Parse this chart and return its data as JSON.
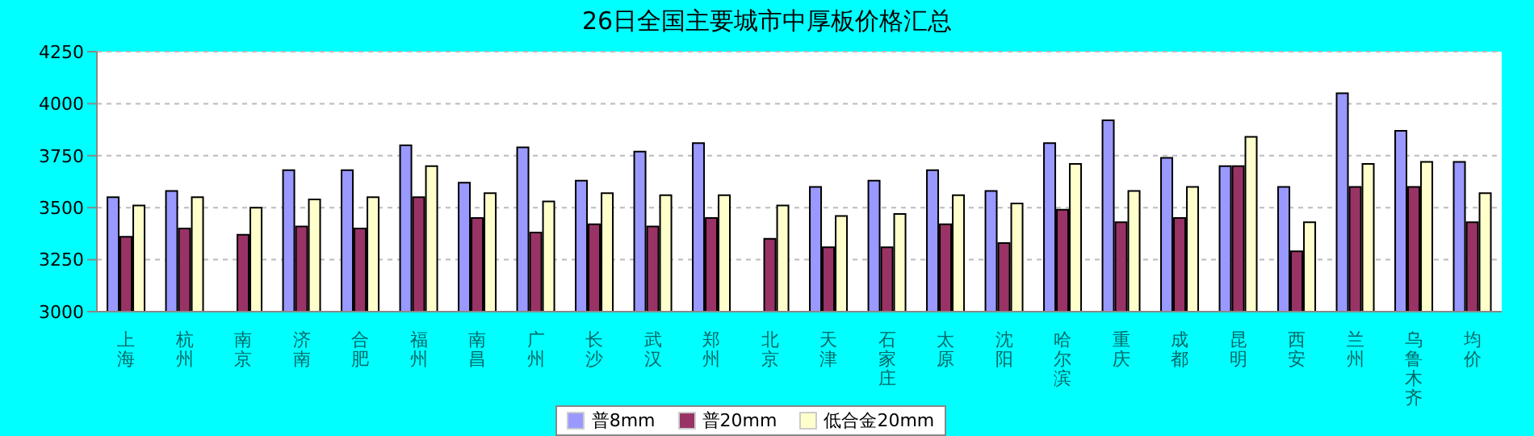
{
  "chart_data": {
    "type": "bar",
    "title": "26日全国主要城市中厚板价格汇总",
    "categories": [
      "上海",
      "杭州",
      "南京",
      "济南",
      "合肥",
      "福州",
      "南昌",
      "广州",
      "长沙",
      "武汉",
      "郑州",
      "北京",
      "天津",
      "石家庄",
      "太原",
      "沈阳",
      "哈尔滨",
      "重庆",
      "成都",
      "昆明",
      "西安",
      "兰州",
      "乌鲁木齐",
      "均价"
    ],
    "series": [
      {
        "name": "普8mm",
        "color": "#9999ff",
        "values": [
          3550,
          3580,
          null,
          3680,
          3680,
          3800,
          3620,
          3790,
          3630,
          3770,
          3810,
          null,
          3600,
          3630,
          3680,
          3580,
          3810,
          3920,
          3740,
          3700,
          3600,
          4050,
          3870,
          3720
        ]
      },
      {
        "name": "普20mm",
        "color": "#993366",
        "values": [
          3360,
          3400,
          3370,
          3410,
          3400,
          3550,
          3450,
          3380,
          3420,
          3410,
          3450,
          3350,
          3310,
          3310,
          3420,
          3330,
          3490,
          3430,
          3450,
          3700,
          3290,
          3600,
          3600,
          3430
        ]
      },
      {
        "name": "低合金20mm",
        "color": "#ffffcc",
        "values": [
          3510,
          3550,
          3500,
          3540,
          3550,
          3700,
          3570,
          3530,
          3570,
          3560,
          3560,
          3510,
          3460,
          3470,
          3560,
          3520,
          3710,
          3580,
          3600,
          3840,
          3430,
          3710,
          3720,
          3570
        ]
      }
    ],
    "ylim": [
      3000,
      4250
    ],
    "yticks": [
      3000,
      3250,
      3500,
      3750,
      4000,
      4250
    ],
    "grid": "y",
    "legend": "bottom"
  }
}
